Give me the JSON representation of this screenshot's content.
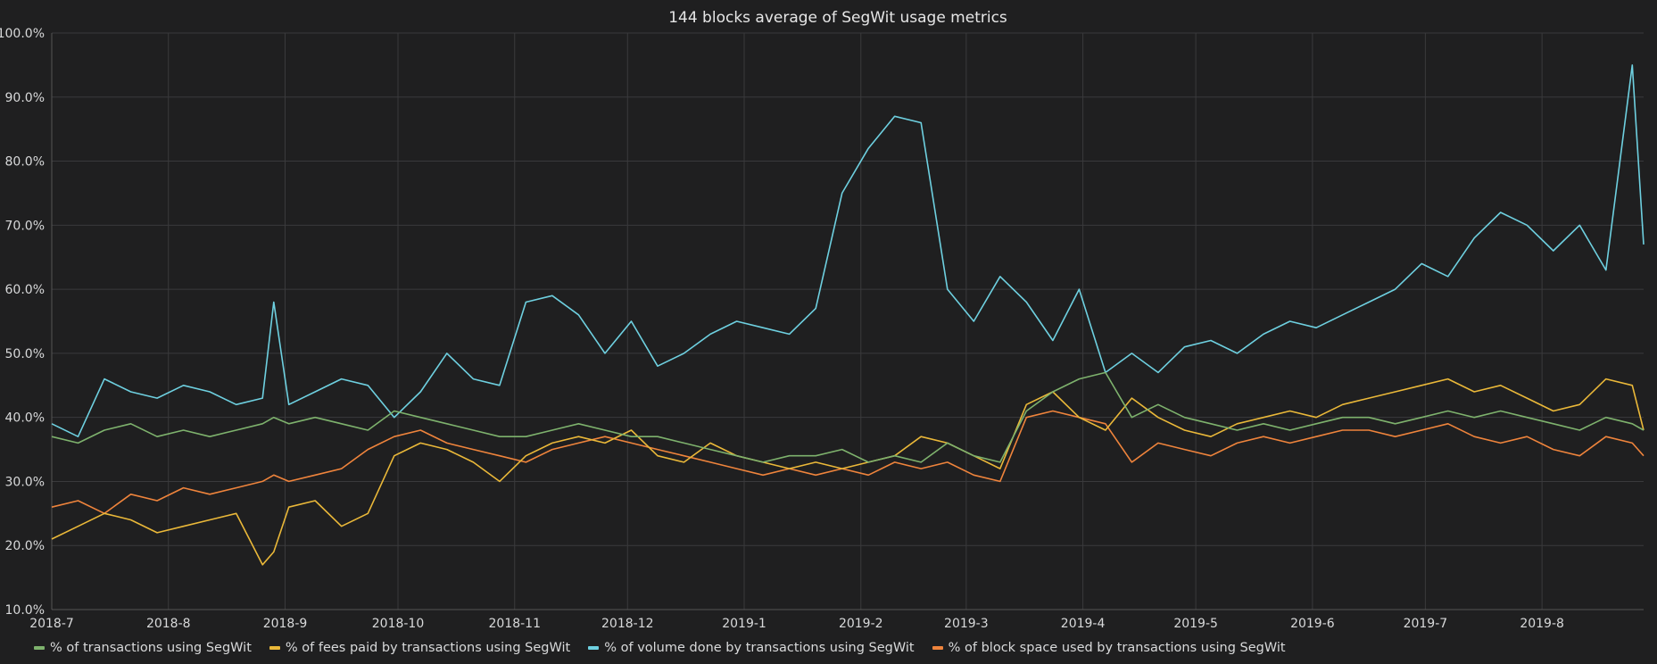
{
  "chart_data": {
    "type": "line",
    "title": "144 blocks average of SegWit usage metrics",
    "xlabel": "",
    "ylabel": "",
    "x_range": [
      "2018-07-01",
      "2019-08-28"
    ],
    "ylim": [
      10,
      100
    ],
    "y_ticks": [
      "10.0%",
      "20.0%",
      "30.0%",
      "40.0%",
      "50.0%",
      "60.0%",
      "70.0%",
      "80.0%",
      "90.0%",
      "100.0%"
    ],
    "x_ticks": [
      {
        "date": "2018-07-01",
        "label": "2018-7"
      },
      {
        "date": "2018-08-01",
        "label": "2018-8"
      },
      {
        "date": "2018-09-01",
        "label": "2018-9"
      },
      {
        "date": "2018-10-01",
        "label": "2018-10"
      },
      {
        "date": "2018-11-01",
        "label": "2018-11"
      },
      {
        "date": "2018-12-01",
        "label": "2018-12"
      },
      {
        "date": "2019-01-01",
        "label": "2019-1"
      },
      {
        "date": "2019-02-01",
        "label": "2019-2"
      },
      {
        "date": "2019-03-01",
        "label": "2019-3"
      },
      {
        "date": "2019-04-01",
        "label": "2019-4"
      },
      {
        "date": "2019-05-01",
        "label": "2019-5"
      },
      {
        "date": "2019-06-01",
        "label": "2019-6"
      },
      {
        "date": "2019-07-01",
        "label": "2019-7"
      },
      {
        "date": "2019-08-01",
        "label": "2019-8"
      }
    ],
    "grid": true,
    "legend_position": "bottom-left",
    "dates": [
      "2018-07-01",
      "2018-07-08",
      "2018-07-15",
      "2018-07-22",
      "2018-07-29",
      "2018-08-05",
      "2018-08-12",
      "2018-08-19",
      "2018-08-26",
      "2018-08-29",
      "2018-09-02",
      "2018-09-09",
      "2018-09-16",
      "2018-09-23",
      "2018-09-30",
      "2018-10-07",
      "2018-10-14",
      "2018-10-21",
      "2018-10-28",
      "2018-11-04",
      "2018-11-11",
      "2018-11-18",
      "2018-11-25",
      "2018-12-02",
      "2018-12-09",
      "2018-12-16",
      "2018-12-23",
      "2018-12-30",
      "2019-01-06",
      "2019-01-13",
      "2019-01-20",
      "2019-01-27",
      "2019-02-03",
      "2019-02-10",
      "2019-02-17",
      "2019-02-24",
      "2019-03-03",
      "2019-03-10",
      "2019-03-17",
      "2019-03-24",
      "2019-03-31",
      "2019-04-07",
      "2019-04-14",
      "2019-04-21",
      "2019-04-28",
      "2019-05-05",
      "2019-05-12",
      "2019-05-19",
      "2019-05-26",
      "2019-06-02",
      "2019-06-09",
      "2019-06-16",
      "2019-06-23",
      "2019-06-30",
      "2019-07-07",
      "2019-07-14",
      "2019-07-21",
      "2019-07-28",
      "2019-08-04",
      "2019-08-11",
      "2019-08-18",
      "2019-08-25",
      "2019-08-28"
    ],
    "series": [
      {
        "name": "% of transactions using SegWit",
        "color": "#7eb26d",
        "values": [
          37,
          36,
          38,
          39,
          37,
          38,
          37,
          38,
          39,
          40,
          39,
          40,
          39,
          38,
          41,
          40,
          39,
          38,
          37,
          37,
          38,
          39,
          38,
          37,
          37,
          36,
          35,
          34,
          33,
          34,
          34,
          35,
          33,
          34,
          33,
          36,
          34,
          33,
          41,
          44,
          46,
          47,
          40,
          42,
          40,
          39,
          38,
          39,
          38,
          39,
          40,
          40,
          39,
          40,
          41,
          40,
          41,
          40,
          39,
          38,
          40,
          39,
          38
        ]
      },
      {
        "name": "% of fees paid by transactions using SegWit",
        "color": "#eab839",
        "values": [
          21,
          23,
          25,
          24,
          22,
          23,
          24,
          25,
          17,
          19,
          26,
          27,
          23,
          25,
          34,
          36,
          35,
          33,
          30,
          34,
          36,
          37,
          36,
          38,
          34,
          33,
          36,
          34,
          33,
          32,
          33,
          32,
          33,
          34,
          37,
          36,
          34,
          32,
          42,
          44,
          40,
          38,
          43,
          40,
          38,
          37,
          39,
          40,
          41,
          40,
          42,
          43,
          44,
          45,
          46,
          44,
          45,
          43,
          41,
          42,
          46,
          45,
          38
        ]
      },
      {
        "name": "% of volume done by transactions using SegWit",
        "color": "#6ed0e0",
        "values": [
          39,
          37,
          46,
          44,
          43,
          45,
          44,
          42,
          43,
          58,
          42,
          44,
          46,
          45,
          40,
          44,
          50,
          46,
          45,
          58,
          59,
          56,
          50,
          55,
          48,
          50,
          53,
          55,
          54,
          53,
          57,
          75,
          82,
          87,
          86,
          60,
          55,
          62,
          58,
          52,
          60,
          47,
          50,
          47,
          51,
          52,
          50,
          53,
          55,
          54,
          56,
          58,
          60,
          64,
          62,
          68,
          72,
          70,
          66,
          70,
          63,
          95,
          67
        ]
      },
      {
        "name": "% of block space used by transactions using SegWit",
        "color": "#ef843c",
        "values": [
          26,
          27,
          25,
          28,
          27,
          29,
          28,
          29,
          30,
          31,
          30,
          31,
          32,
          35,
          37,
          38,
          36,
          35,
          34,
          33,
          35,
          36,
          37,
          36,
          35,
          34,
          33,
          32,
          31,
          32,
          31,
          32,
          31,
          33,
          32,
          33,
          31,
          30,
          40,
          41,
          40,
          39,
          33,
          36,
          35,
          34,
          36,
          37,
          36,
          37,
          38,
          38,
          37,
          38,
          39,
          37,
          36,
          37,
          35,
          34,
          37,
          36,
          34
        ]
      }
    ]
  }
}
